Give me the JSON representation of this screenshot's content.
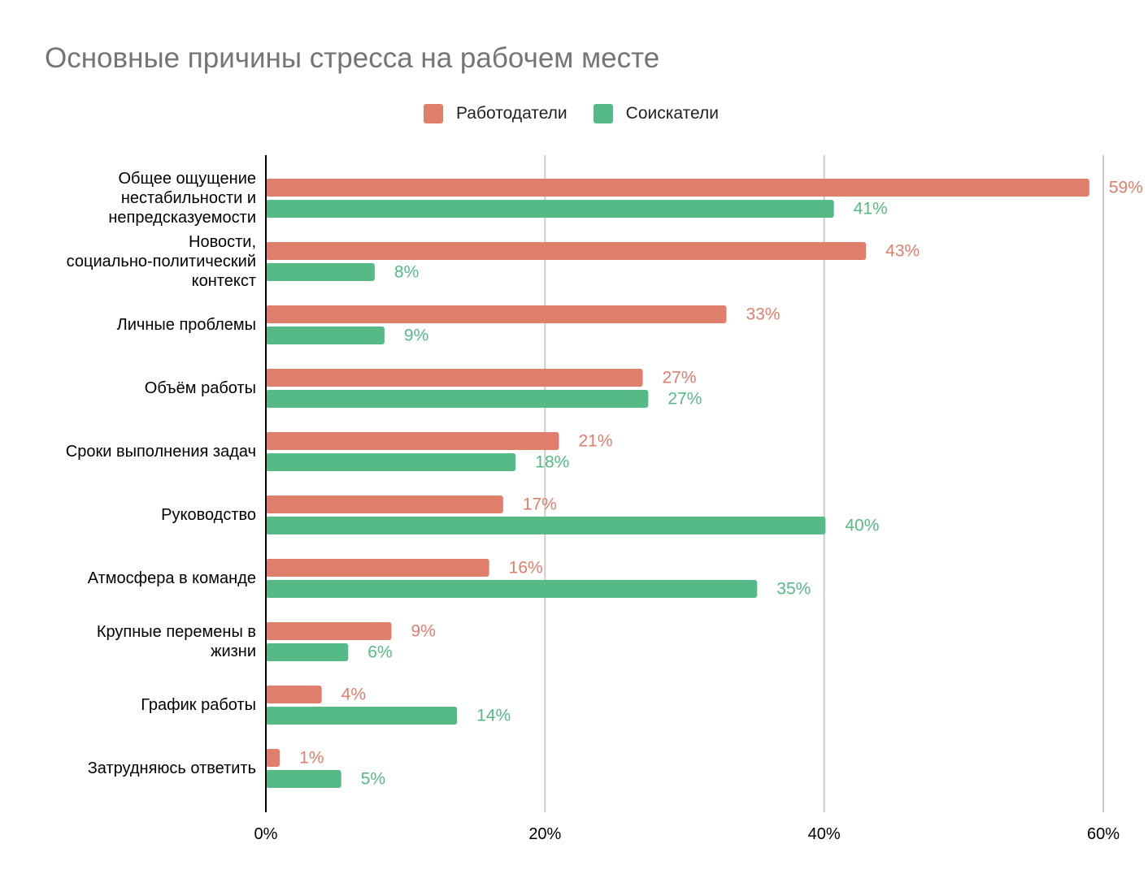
{
  "colors": {
    "employers": "#df7e6b",
    "seekers": "#55ba86",
    "grid": "#cccccc",
    "axis": "#000000",
    "title": "#757575"
  },
  "chart_data": {
    "type": "bar",
    "orientation": "horizontal",
    "title": "Основные причины стресса на рабочем месте",
    "xlabel": "",
    "ylabel": "",
    "xlim": [
      0,
      60
    ],
    "grid": true,
    "legend_position": "top-center",
    "x_ticks": [
      "0%",
      "20%",
      "40%",
      "60%"
    ],
    "x_tick_values": [
      0,
      20,
      40,
      60
    ],
    "categories": [
      [
        "Общее ощущение",
        "нестабильности и",
        "непредсказуемости"
      ],
      [
        "Новости,",
        "социально-политический",
        "контекст"
      ],
      [
        "Личные проблемы"
      ],
      [
        "Объём работы"
      ],
      [
        "Сроки выполнения задач"
      ],
      [
        "Руководство"
      ],
      [
        "Атмосфера в команде"
      ],
      [
        "Крупные перемены в",
        "жизни"
      ],
      [
        "График работы"
      ],
      [
        "Затрудняюсь ответить"
      ]
    ],
    "series": [
      {
        "name": "Работодатели",
        "color": "#df7e6b",
        "values": [
          59,
          43,
          33,
          27,
          21,
          17,
          16,
          9,
          4,
          1
        ],
        "labels": [
          "59%",
          "43%",
          "33%",
          "27%",
          "21%",
          "17%",
          "16%",
          "9%",
          "4%",
          "1%"
        ]
      },
      {
        "name": "Соискатели",
        "color": "#55ba86",
        "values": [
          40.7,
          7.8,
          8.5,
          27.4,
          17.9,
          40.1,
          35.2,
          5.9,
          13.7,
          5.4
        ],
        "labels": [
          "41%",
          "8%",
          "9%",
          "27%",
          "18%",
          "40%",
          "35%",
          "6%",
          "14%",
          "5%"
        ]
      }
    ]
  }
}
